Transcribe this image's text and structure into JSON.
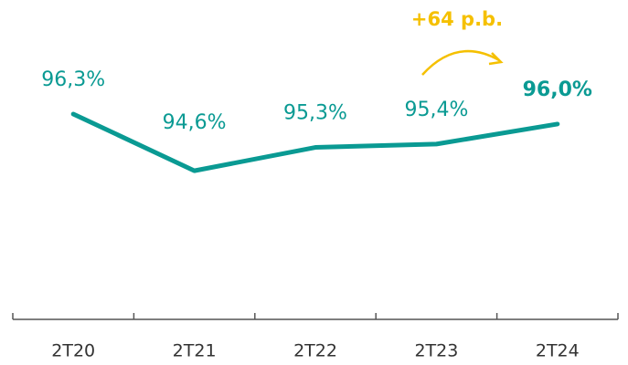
{
  "chart_data": {
    "type": "line",
    "categories": [
      "2T20",
      "2T21",
      "2T22",
      "2T23",
      "2T24"
    ],
    "series": [
      {
        "name": "",
        "color": "#0a9a93",
        "values": [
          96.3,
          94.6,
          95.3,
          95.4,
          96.0
        ],
        "value_labels": [
          "96,3%",
          "94,6%",
          "95,3%",
          "95,4%",
          "96,0%"
        ]
      }
    ],
    "ylim": [
      90.5,
      99.5
    ],
    "annotation": "+64 p.b.",
    "annotation_color": "#f5c000"
  }
}
